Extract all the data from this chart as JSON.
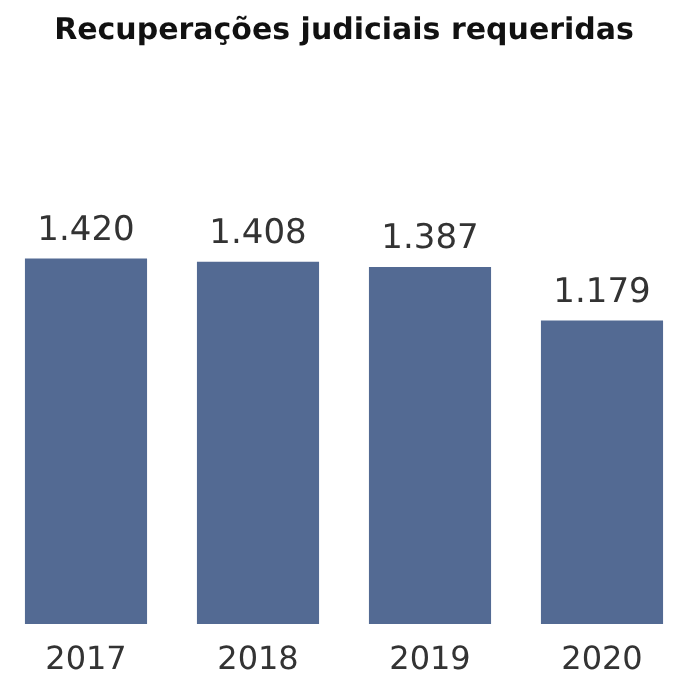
{
  "chart_data": {
    "type": "bar",
    "title": "Recuperações judiciais requeridas",
    "categories": [
      "2017",
      "2018",
      "2019",
      "2020"
    ],
    "values": [
      1420,
      1408,
      1387,
      1179
    ],
    "color": "#536a93",
    "data_labels": true,
    "value_labels": [
      "1.420",
      "1.408",
      "1.387",
      "1.179"
    ]
  }
}
